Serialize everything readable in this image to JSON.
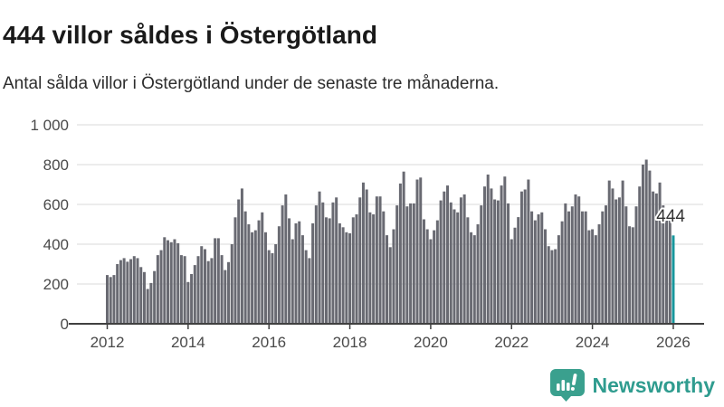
{
  "header": {
    "title": "444 villor såldes i Östergötland",
    "subtitle": "Antal sålda villor i Östergötland under de senaste tre månaderna."
  },
  "chart_data": {
    "type": "bar",
    "title": "444 villor såldes i Östergötland",
    "subtitle": "Antal sålda villor i Östergötland under de senaste tre månaderna.",
    "x_unit": "month",
    "x_start": "2012-01",
    "x_end": "2026-01",
    "xlabel": "",
    "ylabel": "",
    "ylim": [
      0,
      1000
    ],
    "grid": "horizontal",
    "xticks": [
      2012,
      2014,
      2016,
      2018,
      2020,
      2022,
      2024,
      2026
    ],
    "yticks": [
      0,
      200,
      400,
      600,
      800,
      1000
    ],
    "ytick_labels": [
      "0",
      "200",
      "400",
      "600",
      "800",
      "1 000"
    ],
    "annotation": {
      "text": "444",
      "value": 444,
      "position": "last-bar"
    },
    "highlight_last": true,
    "values": [
      245,
      235,
      245,
      300,
      320,
      330,
      312,
      325,
      340,
      330,
      285,
      260,
      175,
      205,
      265,
      345,
      370,
      435,
      420,
      410,
      425,
      405,
      345,
      340,
      210,
      250,
      295,
      340,
      390,
      375,
      315,
      330,
      430,
      430,
      345,
      270,
      310,
      400,
      535,
      625,
      680,
      565,
      500,
      460,
      470,
      520,
      560,
      460,
      370,
      355,
      400,
      490,
      595,
      650,
      530,
      425,
      505,
      515,
      445,
      370,
      330,
      505,
      595,
      665,
      610,
      535,
      530,
      610,
      635,
      505,
      485,
      460,
      455,
      535,
      550,
      635,
      710,
      675,
      560,
      550,
      640,
      640,
      565,
      445,
      385,
      475,
      595,
      705,
      765,
      590,
      605,
      605,
      725,
      735,
      525,
      475,
      425,
      470,
      520,
      620,
      665,
      695,
      610,
      575,
      560,
      635,
      650,
      535,
      460,
      445,
      500,
      595,
      690,
      750,
      680,
      625,
      620,
      695,
      740,
      605,
      425,
      483,
      536,
      665,
      675,
      725,
      565,
      520,
      550,
      560,
      475,
      390,
      370,
      375,
      445,
      515,
      605,
      565,
      590,
      650,
      640,
      565,
      565,
      470,
      475,
      445,
      500,
      565,
      595,
      720,
      680,
      625,
      635,
      720,
      590,
      490,
      485,
      590,
      690,
      800,
      825,
      770,
      665,
      655,
      710,
      595,
      535,
      520,
      444
    ],
    "colors": {
      "bar": "#696a72",
      "highlight": "#17969c",
      "grid": "#d9d9d9",
      "axis_line": "#404040",
      "tick_label": "#4a4a4a",
      "annotation_text": "#333333"
    }
  },
  "footer": {
    "brand": "Newsworthy",
    "brand_color": "#2f9c8f",
    "logo_icon": "bar-chart-speech-bubble"
  }
}
